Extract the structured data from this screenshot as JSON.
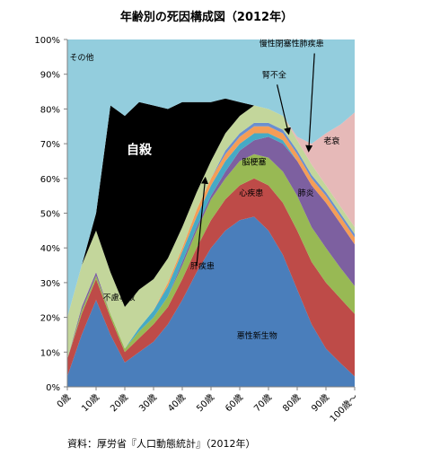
{
  "chart_data": {
    "type": "area",
    "stacked": "percent",
    "title": "年齢別の死因構成図（2012年）",
    "source": "資料：厚労省『人口動態統計』（2012年）",
    "xlabel": "",
    "ylabel": "",
    "ylim": [
      0,
      100
    ],
    "y_ticks": [
      "0%",
      "10%",
      "20%",
      "30%",
      "40%",
      "50%",
      "60%",
      "70%",
      "80%",
      "90%",
      "100%"
    ],
    "x_ticks": [
      "0歳",
      "10歳",
      "20歳",
      "30歳",
      "40歳",
      "50歳",
      "60歳",
      "70歳",
      "80歳",
      "90歳",
      "100歳～"
    ],
    "grid": false,
    "x": [
      0,
      5,
      10,
      15,
      20,
      25,
      30,
      35,
      40,
      45,
      50,
      55,
      60,
      65,
      70,
      75,
      80,
      85,
      90,
      95,
      100
    ],
    "series": [
      {
        "name": "悪性新生物",
        "color": "#4a7ebb",
        "values": [
          3,
          15,
          25,
          15,
          7,
          10,
          13,
          18,
          25,
          33,
          40,
          45,
          48,
          49,
          45,
          38,
          28,
          18,
          11,
          7,
          3
        ]
      },
      {
        "name": "心疾患",
        "color": "#be4b48",
        "values": [
          5,
          6,
          6,
          5,
          3,
          4,
          5,
          5,
          6,
          7,
          8,
          9,
          10,
          11,
          13,
          15,
          17,
          18,
          19,
          19,
          18
        ]
      },
      {
        "name": "脳梗塞",
        "color": "#98b954",
        "values": [
          0,
          1,
          1,
          1,
          1,
          2,
          2,
          3,
          4,
          5,
          6,
          6,
          7,
          7,
          8,
          9,
          10,
          10,
          10,
          9,
          8
        ]
      },
      {
        "name": "肺炎",
        "color": "#7d60a0",
        "values": [
          0,
          1,
          1,
          0,
          0,
          0,
          0,
          0,
          1,
          1,
          1,
          2,
          3,
          4,
          6,
          8,
          10,
          12,
          13,
          13,
          12
        ]
      },
      {
        "name": "肝疾患",
        "color": "#46aac5",
        "values": [
          0,
          0,
          0,
          0,
          0,
          1,
          2,
          3,
          3,
          3,
          3,
          3,
          2,
          2,
          1,
          1,
          0,
          0,
          0,
          0,
          0
        ]
      },
      {
        "name": "腎不全",
        "color": "#f59d56",
        "values": [
          0,
          0,
          0,
          0,
          0,
          0,
          0,
          1,
          1,
          2,
          2,
          2,
          2,
          2,
          2,
          2,
          2,
          2,
          2,
          2,
          2
        ]
      },
      {
        "name": "慢性閉塞性肺疾患",
        "color": "#6b8fcf",
        "values": [
          0,
          0,
          0,
          0,
          0,
          0,
          0,
          0,
          0,
          0,
          0,
          1,
          1,
          1,
          1,
          1,
          1,
          1,
          1,
          1,
          1
        ]
      },
      {
        "name": "不慮事故",
        "color": "#c3d69b",
        "values": [
          12,
          12,
          12,
          12,
          12,
          11,
          9,
          7,
          6,
          5,
          5,
          5,
          5,
          5,
          4,
          4,
          3,
          3,
          2,
          2,
          2
        ]
      },
      {
        "name": "自殺",
        "color": "#000000",
        "values": [
          0,
          0,
          5,
          48,
          55,
          54,
          50,
          43,
          36,
          26,
          17,
          10,
          4,
          0,
          0,
          0,
          0,
          0,
          0,
          0,
          0
        ]
      },
      {
        "name": "老衰",
        "color": "#e6b9b8",
        "values": [
          0,
          0,
          0,
          0,
          0,
          0,
          0,
          0,
          0,
          0,
          0,
          0,
          0,
          0,
          0,
          0,
          1,
          6,
          15,
          24,
          33
        ]
      },
      {
        "name": "その他",
        "color": "#93cddd",
        "values": [
          80,
          65,
          50,
          19,
          22,
          18,
          19,
          20,
          18,
          18,
          18,
          17,
          18,
          19,
          20,
          22,
          28,
          30,
          27,
          25,
          21
        ]
      }
    ],
    "annotations": [
      {
        "text": "その他",
        "at_age": 5,
        "at_pct": 94
      },
      {
        "text": "自殺",
        "at_age": 25,
        "at_pct": 67
      },
      {
        "text": "不慮事故",
        "at_age": 18,
        "at_pct": 25
      },
      {
        "text": "悪性新生物",
        "at_age": 66,
        "at_pct": 14
      },
      {
        "text": "心疾患",
        "at_age": 64,
        "at_pct": 55
      },
      {
        "text": "脳梗塞",
        "at_age": 65,
        "at_pct": 64
      },
      {
        "text": "肺炎",
        "at_age": 83,
        "at_pct": 55
      },
      {
        "text": "肝疾患",
        "at_age": 47,
        "at_pct": 34
      },
      {
        "text": "腎不全",
        "at_age": 72,
        "at_pct": 89
      },
      {
        "text": "慢性閉塞性肺疾患",
        "at_age": 78,
        "at_pct": 98
      },
      {
        "text": "老衰",
        "at_age": 92,
        "at_pct": 70
      }
    ],
    "arrows": [
      {
        "from_age": 45,
        "from_pct": 35,
        "to_age": 48,
        "to_pct": 60
      },
      {
        "from_age": 73,
        "from_pct": 87,
        "to_age": 77,
        "to_pct": 73
      },
      {
        "from_age": 86,
        "from_pct": 96,
        "to_age": 84,
        "to_pct": 68
      }
    ]
  }
}
